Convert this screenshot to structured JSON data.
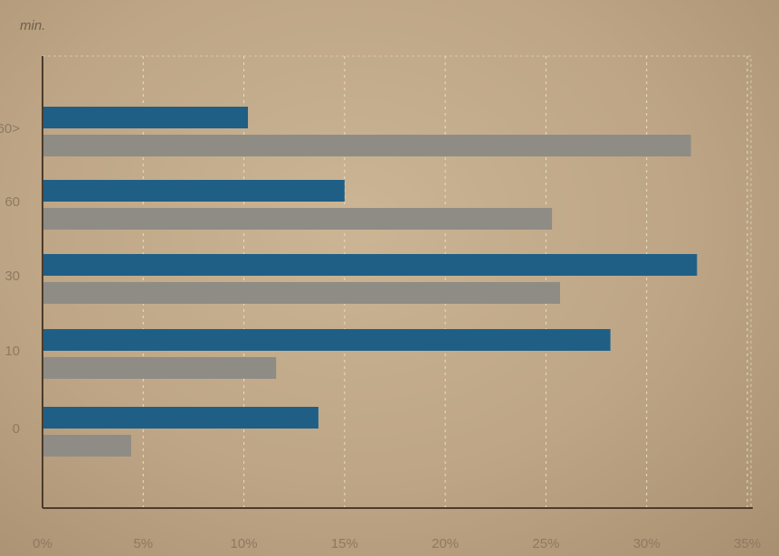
{
  "chart_data": {
    "type": "bar",
    "orientation": "horizontal",
    "ylabel": "min.",
    "categories": [
      "0",
      "10",
      "30",
      "60",
      "60>"
    ],
    "series": [
      {
        "values": [
          13.7,
          28.2,
          32.5,
          15.0,
          10.2
        ]
      },
      {
        "values": [
          4.4,
          11.6,
          25.7,
          25.3,
          32.2
        ]
      }
    ],
    "xlim": [
      0,
      35
    ],
    "xticks": [
      "0%",
      "5%",
      "10%",
      "15%",
      "20%",
      "25%",
      "30%",
      "35%"
    ],
    "grid": true,
    "colors": {
      "series": [
        "#1f5f86",
        "#8f8c85"
      ],
      "axis": "#4a3b2c",
      "grid": "#e9ddc6"
    }
  }
}
